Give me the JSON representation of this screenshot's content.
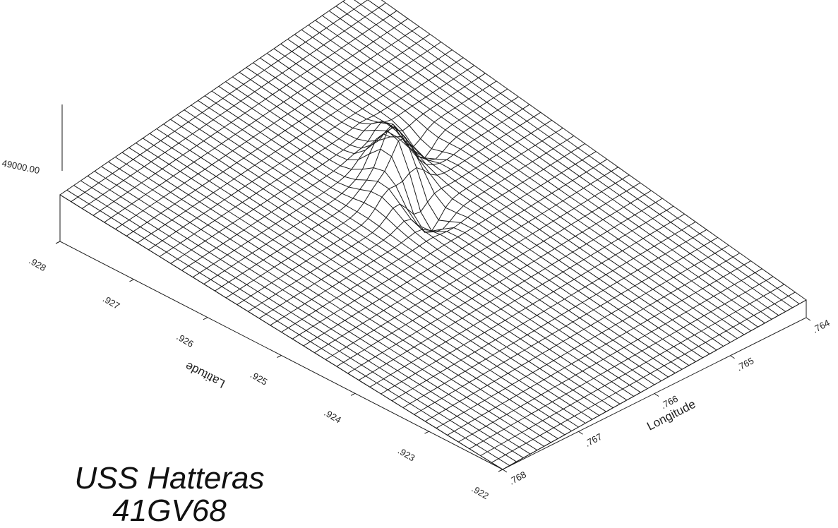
{
  "caption": {
    "line1": "USS Hatteras",
    "line2": "41GV68"
  },
  "chart_data": {
    "type": "surface",
    "title": "",
    "z_axis": {
      "tick_label": "49000.00"
    },
    "latitude_axis": {
      "label": "Latitude",
      "ticks": [
        ".928",
        ".927",
        ".926",
        ".925",
        ".924",
        ".923",
        ".922"
      ]
    },
    "longitude_axis": {
      "label": "Longitude",
      "ticks": [
        ".768",
        ".767",
        ".766",
        ".765",
        ".764"
      ]
    },
    "grid": {
      "rows": 40,
      "cols": 44
    },
    "surface": {
      "base_value": 49000,
      "regional_gradient": "surface slopes upward toward the far (.928 latitude / .764 longitude) corner",
      "anomaly": "magnetic anomaly with central peak and flanking lows near the middle of the survey area"
    },
    "colors": {
      "line": "#1a1a1a",
      "background": "#ffffff"
    }
  }
}
